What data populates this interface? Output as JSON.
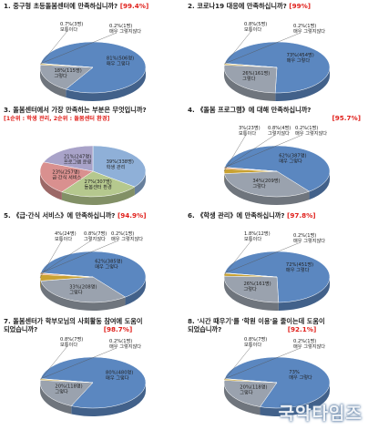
{
  "questions": [
    {
      "title": "1. 중구형 초등돌봄센터에 만족하십니까?",
      "pct": "[99.4%]"
    },
    {
      "title": "2. 코로나19 대응에 만족하십니까?",
      "pct": "[99%]"
    },
    {
      "title": "3. 돌봄센터에서 가장 만족하는 부분은 무엇입니까?",
      "sub": "[1순위 : 학생 관리, 2순위 : 돌봄센터 환경]"
    },
    {
      "title": "4. 《돌봄 프로그램》에 대해 만족하십니까?",
      "pct": "[95.7%]"
    },
    {
      "title": "5. 《급·간식 서비스》에 만족하십니까?",
      "pct": "[94.9%]"
    },
    {
      "title": "6. 《학생 관리》에 만족하십니까?",
      "pct": "[97.8%]"
    },
    {
      "title": "7. 돌봄센터가 학부모님의 사회활동 참여에 도움이",
      "title2": "되었습니까?",
      "pct": "[98.7%]"
    },
    {
      "title": "8. '시간 때우기'를 '학원 이용'을 줄이는데 도움이",
      "title2": "되었습니까?",
      "pct": "[92.1%]"
    }
  ],
  "chart_data": [
    {
      "type": "pie",
      "slices": [
        {
          "label": "매우 그렇다",
          "text": "81%(506명)",
          "value": 81
        },
        {
          "label": "그렇다",
          "text": "18%(115명)",
          "value": 18
        },
        {
          "label": "보통이다",
          "text": "0.7%(3명)",
          "value": 0.7
        },
        {
          "label": "매우 그렇지않다",
          "text": "0.2%(1명)",
          "value": 0.2
        }
      ],
      "colors": [
        "#5b87c0",
        "#9aa2ae",
        "#c9a232",
        "#4f7d3f"
      ]
    },
    {
      "type": "pie",
      "slices": [
        {
          "label": "매우 그렇다",
          "text": "73%(454명)",
          "value": 73
        },
        {
          "label": "그렇다",
          "text": "26%(161명)",
          "value": 26
        },
        {
          "label": "보통이다",
          "text": "0.8%(5명)",
          "value": 0.8
        },
        {
          "label": "매우 그렇지않다",
          "text": "0.2%(1명)",
          "value": 0.2
        }
      ],
      "colors": [
        "#5b87c0",
        "#9aa2ae",
        "#c9a232",
        "#4f7d3f"
      ]
    },
    {
      "type": "pie",
      "slices": [
        {
          "label": "학생 관리",
          "text": "39%(338명)",
          "value": 39
        },
        {
          "label": "돌봄센터 환경",
          "text": "27%(307명)",
          "value": 27
        },
        {
          "label": "급·간식 서비스",
          "text": "23%(257명)",
          "value": 23
        },
        {
          "label": "프로그램 운영",
          "text": "21%(247명)",
          "value": 21
        }
      ],
      "colors": [
        "#8fb0d8",
        "#b5c88e",
        "#d9908f",
        "#a9a3c9"
      ]
    },
    {
      "type": "pie",
      "slices": [
        {
          "label": "매우 그렇다",
          "text": "62%(387명)",
          "value": 62
        },
        {
          "label": "그렇다",
          "text": "34%(209명)",
          "value": 34
        },
        {
          "label": "보통이다",
          "text": "3%(23명)",
          "value": 3
        },
        {
          "label": "그렇지않다",
          "text": "0.8%(4명)",
          "value": 0.8
        },
        {
          "label": "매우 그렇지않다",
          "text": "0.2%(1명)",
          "value": 0.2
        }
      ],
      "colors": [
        "#5b87c0",
        "#9aa2ae",
        "#c9a232",
        "#e07a2f",
        "#4f7d3f"
      ]
    },
    {
      "type": "pie",
      "slices": [
        {
          "label": "매우 그렇다",
          "text": "62%(385명)",
          "value": 62
        },
        {
          "label": "그렇다",
          "text": "33%(208명)",
          "value": 33
        },
        {
          "label": "보통이다",
          "text": "4%(24명)",
          "value": 4
        },
        {
          "label": "그렇지않다",
          "text": "0.8%(7명)",
          "value": 0.8
        },
        {
          "label": "매우 그렇지않다",
          "text": "0.2%(1명)",
          "value": 0.2
        }
      ],
      "colors": [
        "#5b87c0",
        "#9aa2ae",
        "#c9a232",
        "#e07a2f",
        "#4f7d3f"
      ]
    },
    {
      "type": "pie",
      "slices": [
        {
          "label": "매우 그렇다",
          "text": "72%(451명)",
          "value": 72
        },
        {
          "label": "그렇다",
          "text": "26%(161명)",
          "value": 26
        },
        {
          "label": "보통이다",
          "text": "1.8%(12명)",
          "value": 1.8
        },
        {
          "label": "매우 그렇지않다",
          "text": "0.2%(1명)",
          "value": 0.2
        }
      ],
      "colors": [
        "#5b87c0",
        "#9aa2ae",
        "#c9a232",
        "#4f7d3f"
      ]
    },
    {
      "type": "pie",
      "slices": [
        {
          "label": "매우 그렇다",
          "text": "80%(480명)",
          "value": 80
        },
        {
          "label": "그렇다",
          "text": "20%(118명)",
          "value": 20
        },
        {
          "label": "보통이다",
          "text": "0.8%(7명)",
          "value": 0.8
        },
        {
          "label": "매우 그렇지않다",
          "text": "0.2%(1명)",
          "value": 0.2
        }
      ],
      "colors": [
        "#5b87c0",
        "#9aa2ae",
        "#c9a232",
        "#4f7d3f"
      ]
    },
    {
      "type": "pie",
      "slices": [
        {
          "label": "매우 그렇다",
          "text": "73%",
          "value": 73
        },
        {
          "label": "그렇다",
          "text": "20%(118명)",
          "value": 20
        },
        {
          "label": "보통이다",
          "text": "0.8%(7명)",
          "value": 0.8
        },
        {
          "label": "매우 그렇지않다",
          "text": "0.2%(1명)",
          "value": 0.2
        }
      ],
      "colors": [
        "#5b87c0",
        "#9aa2ae",
        "#c9a232",
        "#4f7d3f"
      ]
    }
  ],
  "watermark": "국악타임즈"
}
